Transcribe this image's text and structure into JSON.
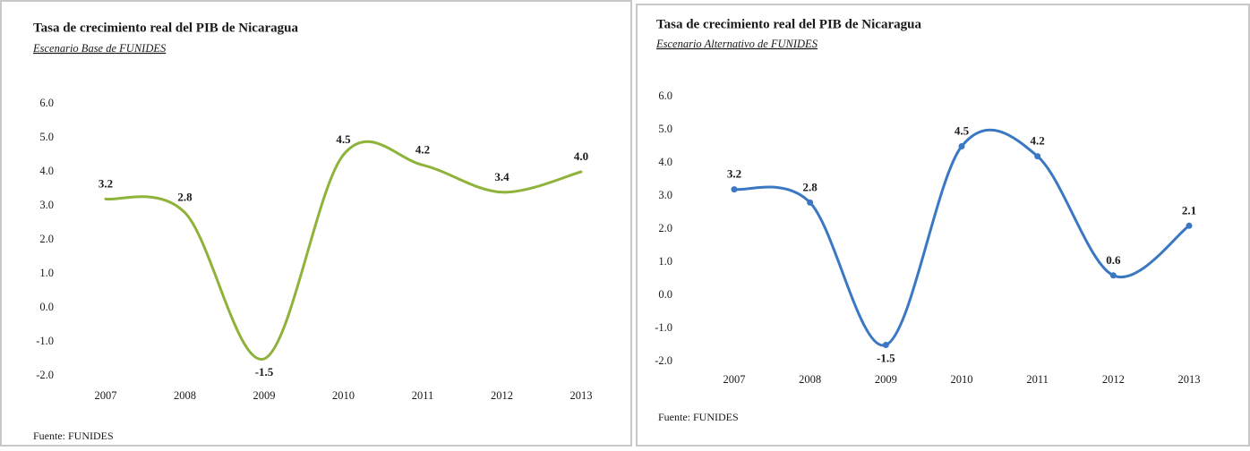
{
  "chart_data": [
    {
      "type": "line",
      "title": "Tasa de crecimiento real del PIB de Nicaragua",
      "subtitle": "Escenario Base de FUNIDES",
      "categories": [
        "2007",
        "2008",
        "2009",
        "2010",
        "2011",
        "2012",
        "2013"
      ],
      "values": [
        3.2,
        2.8,
        -1.5,
        4.5,
        4.2,
        3.4,
        4.0
      ],
      "value_labels": [
        "3.2",
        "2.8",
        "-1.5",
        "4.5",
        "4.2",
        "3.4",
        "4.0"
      ],
      "color": "#8db33a",
      "markers": false,
      "smooth": true,
      "ylim": [
        -2,
        6
      ],
      "yticks": [
        {
          "value": -2,
          "label": "-2.0"
        },
        {
          "value": -1,
          "label": "-1.0"
        },
        {
          "value": 0,
          "label": "0.0"
        },
        {
          "value": 1,
          "label": "1.0"
        },
        {
          "value": 2,
          "label": "2.0"
        },
        {
          "value": 3,
          "label": "3.0"
        },
        {
          "value": 4,
          "label": "4.0"
        },
        {
          "value": 5,
          "label": "5.0"
        },
        {
          "value": 6,
          "label": "6.0"
        }
      ],
      "source": "Fuente: FUNIDES"
    },
    {
      "type": "line",
      "title": "Tasa de crecimiento real del PIB de Nicaragua",
      "subtitle": "Escenario Alternativo de FUNIDES",
      "categories": [
        "2007",
        "2008",
        "2009",
        "2010",
        "2011",
        "2012",
        "2013"
      ],
      "values": [
        3.2,
        2.8,
        -1.5,
        4.5,
        4.2,
        0.6,
        2.1
      ],
      "value_labels": [
        "3.2",
        "2.8",
        "-1.5",
        "4.5",
        "4.2",
        "0.6",
        "2.1"
      ],
      "color": "#3a78c3",
      "markers": true,
      "smooth": true,
      "ylim": [
        -2,
        6
      ],
      "yticks": [
        {
          "value": -2,
          "label": "-2.0"
        },
        {
          "value": -1,
          "label": "-1.0"
        },
        {
          "value": 0,
          "label": "0.0"
        },
        {
          "value": 1,
          "label": "1.0"
        },
        {
          "value": 2,
          "label": "2.0"
        },
        {
          "value": 3,
          "label": "3.0"
        },
        {
          "value": 4,
          "label": "4.0"
        },
        {
          "value": 5,
          "label": "5.0"
        },
        {
          "value": 6,
          "label": "6.0"
        }
      ],
      "source": "Fuente: FUNIDES"
    }
  ]
}
